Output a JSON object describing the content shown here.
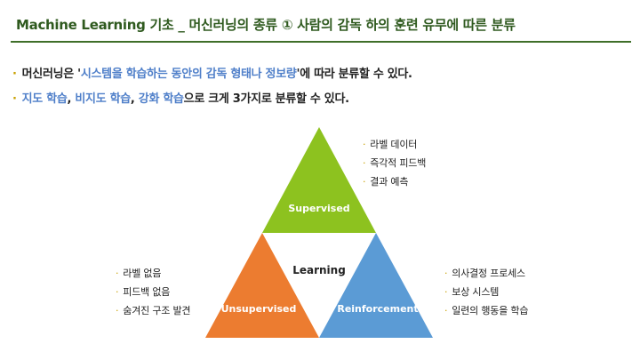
{
  "title": "Machine Learning 기초 _ 머신러닝의 종류 ① 사람의 감독 하의 훈련 유무에 따른 분류",
  "bullets": {
    "line1": {
      "prefix": "머신러닝은 '",
      "highlight": "시스템을 학습하는 동안의 감독 형태나 정보량",
      "suffix": "'에 따라 분류할 수 있다."
    },
    "line2": {
      "part1": "지도 학습",
      "sep1": ", ",
      "part2": "비지도 학습",
      "sep2": ", ",
      "part3": "강화 학습",
      "suffix": "으로 크게 3가지로 분류할 수 있다."
    }
  },
  "bullet_marker": "·",
  "diagram": {
    "center": "Learning",
    "supervised": {
      "label": "Supervised",
      "color": "#8dc21f",
      "items": [
        "라벨 데이터",
        "즉각적 피드백",
        "결과 예측"
      ]
    },
    "unsupervised": {
      "label": "Unsupervised",
      "color": "#ec7c30",
      "items": [
        "라벨 없음",
        "피드백 없음",
        "숨겨진 구조 발견"
      ]
    },
    "reinforcement": {
      "label": "Reinforcement",
      "color": "#5b9bd5",
      "items": [
        "의사결정 프로세스",
        "보상 시스템",
        "일련의 행동을 학습"
      ]
    }
  },
  "colors": {
    "title": "#2f5a1f",
    "rule": "#3f6f29",
    "highlight": "#4f7fc9",
    "marker": "#c8a000"
  }
}
